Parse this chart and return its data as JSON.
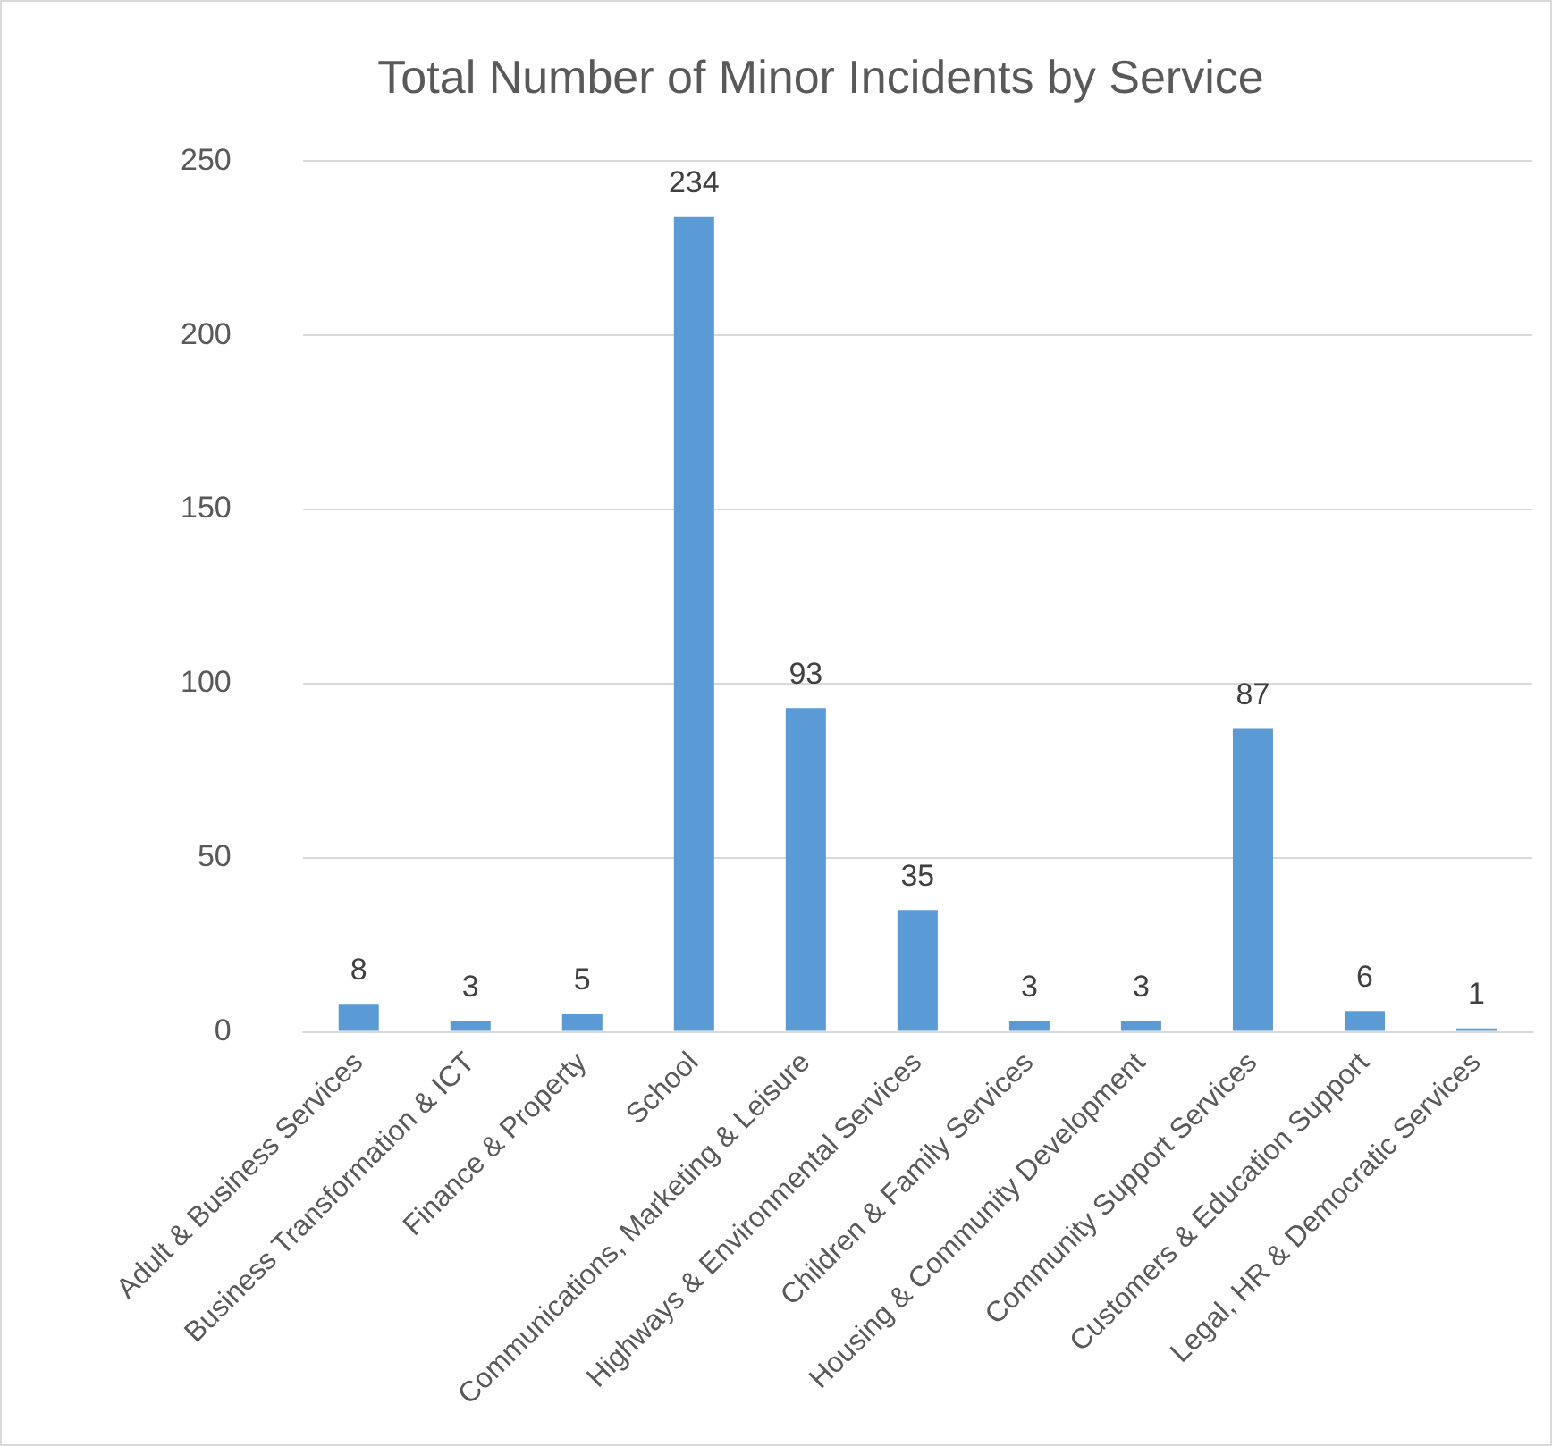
{
  "chart_data": {
    "type": "bar",
    "title": "Total Number of Minor Incidents by Service",
    "categories": [
      "Adult & Business Services",
      "Business Transformation & ICT",
      "Finance & Property",
      "School",
      "Communications, Marketing & Leisure",
      "Highways & Environmental Services",
      "Children & Family Services",
      "Housing & Community Development",
      "Community Support Services",
      "Customers & Education Support",
      "Legal, HR & Democratic Services"
    ],
    "values": [
      8,
      3,
      5,
      234,
      93,
      35,
      3,
      3,
      87,
      6,
      1
    ],
    "color": "#5b9bd5",
    "ylim": [
      0,
      250
    ],
    "yticks": [
      0,
      50,
      100,
      150,
      200,
      250
    ],
    "grid": "y",
    "data_labels": true
  }
}
